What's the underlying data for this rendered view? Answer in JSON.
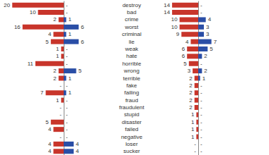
{
  "chart_data": [
    {
      "type": "bar",
      "orientation": "horizontal",
      "data_labels": true,
      "tick_labels": false,
      "categories": [
        "destroy",
        "bad",
        "crime",
        "worst",
        "criminal",
        "lie",
        "weak",
        "hate",
        "horrible",
        "wrong",
        "terrible",
        "fake",
        "failing",
        "fraud",
        "fraudulent",
        "stupid",
        "disaster",
        "failed",
        "negative",
        "loser",
        "sucker"
      ],
      "series": [
        {
          "color": "#c8352b",
          "xlim": [
            0,
            22
          ],
          "values": [
            20,
            10,
            2,
            16,
            4,
            5,
            1,
            1,
            11,
            2,
            2,
            0,
            7,
            1,
            0,
            0,
            5,
            4,
            0,
            4,
            4
          ],
          "value_labels": [
            "20",
            "10",
            "2",
            "16",
            "4",
            "5",
            "1",
            "1",
            "11",
            "2",
            "2",
            "-",
            "7",
            "1",
            "-",
            "-",
            "5",
            "4",
            "-",
            "4",
            "4"
          ]
        },
        {
          "color": "#2a4ea6",
          "xlim": [
            0,
            17
          ],
          "values": [
            0,
            0,
            1,
            6,
            1,
            6,
            0,
            0,
            0,
            5,
            1,
            0,
            1,
            0,
            0,
            0,
            0,
            0,
            0,
            4,
            4
          ],
          "value_labels": [
            "-",
            "-",
            "1",
            "6",
            "1",
            "6",
            "-",
            "-",
            "-",
            "5",
            "1",
            "-",
            "1",
            "-",
            "-",
            "-",
            "-",
            "-",
            "-",
            "4",
            "4"
          ]
        }
      ]
    },
    {
      "type": "bar",
      "orientation": "horizontal",
      "data_labels": true,
      "tick_labels": false,
      "categories": [
        "destroy",
        "bad",
        "crime",
        "worst",
        "criminal",
        "lie",
        "weak",
        "hate",
        "horrible",
        "wrong",
        "terrible",
        "fake",
        "failing",
        "fraud",
        "fraudulent",
        "stupid",
        "disaster",
        "failed",
        "negative",
        "loser",
        "sucker"
      ],
      "series": [
        {
          "color": "#c8352b",
          "xlim": [
            0,
            22
          ],
          "values": [
            14,
            14,
            10,
            10,
            9,
            4,
            6,
            6,
            5,
            3,
            2,
            2,
            2,
            2,
            2,
            1,
            1,
            1,
            1,
            0,
            0
          ],
          "value_labels": [
            "14",
            "14",
            "10",
            "10",
            "9",
            "4",
            "6",
            "6",
            "5",
            "3",
            "2",
            "2",
            "2",
            "2",
            "2",
            "1",
            "1",
            "1",
            "1",
            "-",
            "-"
          ]
        },
        {
          "color": "#2a4ea6",
          "xlim": [
            0,
            30
          ],
          "values": [
            0,
            0,
            4,
            3,
            3,
            7,
            5,
            2,
            0,
            2,
            1,
            0,
            0,
            0,
            0,
            0,
            0,
            0,
            0,
            0,
            0
          ],
          "value_labels": [
            "-",
            "-",
            "4",
            "3",
            "3",
            "7",
            "5",
            "2",
            "-",
            "2",
            "1",
            "-",
            "-",
            "-",
            "-",
            "-",
            "-",
            "-",
            "-",
            "-",
            "-"
          ]
        }
      ]
    }
  ]
}
